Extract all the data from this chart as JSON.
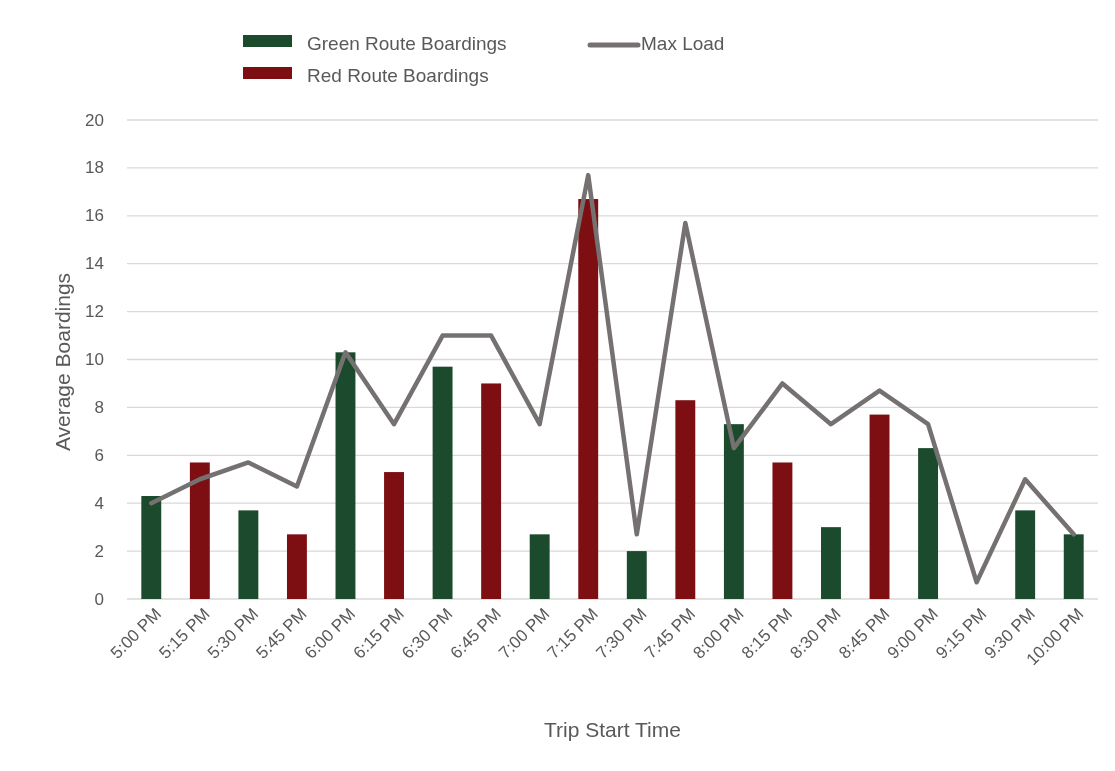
{
  "chart_data": {
    "type": "bar",
    "xlabel": "Trip Start Time",
    "ylabel": "Average Boardings",
    "categories": [
      "5:00 PM",
      "5:15 PM",
      "5:30 PM",
      "5:45 PM",
      "6:00 PM",
      "6:15 PM",
      "6:30 PM",
      "6:45 PM",
      "7:00 PM",
      "7:15 PM",
      "7:30 PM",
      "7:45 PM",
      "8:00 PM",
      "8:15 PM",
      "8:30 PM",
      "8:45 PM",
      "9:00 PM",
      "9:15 PM",
      "9:30 PM",
      "10:00 PM"
    ],
    "series": [
      {
        "name": "Green Route Boardings",
        "color": "#1b4a2c",
        "values": [
          4.3,
          null,
          3.7,
          null,
          10.3,
          null,
          9.7,
          null,
          2.7,
          null,
          2,
          null,
          7.3,
          null,
          3,
          null,
          6.3,
          null,
          3.7,
          2.7
        ]
      },
      {
        "name": "Red Route Boardings",
        "color": "#7d0e12",
        "values": [
          null,
          5.7,
          null,
          2.7,
          null,
          5.3,
          null,
          9,
          null,
          16.7,
          null,
          8.3,
          null,
          5.7,
          null,
          7.7,
          null,
          null,
          null,
          null
        ]
      },
      {
        "name": "Max Load",
        "type": "line",
        "color": "#767171",
        "values": [
          4,
          5,
          5.7,
          4.7,
          10.3,
          7.3,
          11,
          11,
          7.3,
          17.7,
          2.7,
          15.7,
          6.3,
          9,
          7.3,
          8.7,
          7.3,
          0.7,
          5,
          2.7
        ]
      }
    ],
    "ylim": [
      0,
      20
    ],
    "yticks": [
      0,
      2,
      4,
      6,
      8,
      10,
      12,
      14,
      16,
      18,
      20
    ],
    "grid": "y",
    "legend": "top"
  }
}
